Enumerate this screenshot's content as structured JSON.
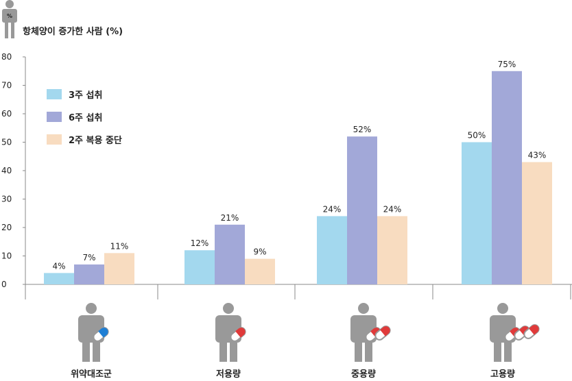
{
  "chart_data": {
    "type": "bar",
    "ylabel": "항체양이 증가한 사람 (%)",
    "ylabel_icon_text": "%",
    "categories": [
      "위약대조군",
      "저용량",
      "중용량",
      "고용량"
    ],
    "category_icons": [
      "person-one-blue-pill-icon",
      "person-one-red-pill-icon",
      "person-two-red-pills-icon",
      "person-three-red-pills-icon"
    ],
    "series": [
      {
        "name": "3주 섭취",
        "color": "#a3d8ee",
        "values": [
          4,
          12,
          24,
          50
        ],
        "labels": [
          "4%",
          "12%",
          "24%",
          "50%"
        ]
      },
      {
        "name": "6주 섭취",
        "color": "#a2a8d8",
        "values": [
          7,
          21,
          52,
          75
        ],
        "labels": [
          "7%",
          "21%",
          "52%",
          "75%"
        ]
      },
      {
        "name": "2주 복용 중단",
        "color": "#f8dcc0",
        "values": [
          11,
          9,
          24,
          43
        ],
        "labels": [
          "11%",
          "9%",
          "24%",
          "43%"
        ]
      }
    ],
    "y_ticks": [
      "0",
      "10",
      "20",
      "30",
      "40",
      "50",
      "60",
      "70",
      "80"
    ],
    "ylim": [
      0,
      80
    ],
    "grid": false,
    "legend_position": "top-left",
    "colors": {
      "axis": "#888888",
      "person": "#999999",
      "pill_red": "#e03a3a",
      "pill_blue": "#1f7fd4"
    }
  }
}
